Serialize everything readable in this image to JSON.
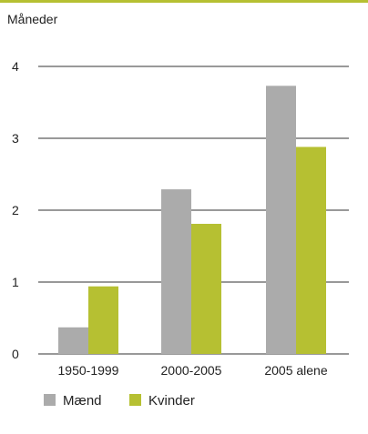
{
  "chart_data": {
    "type": "bar",
    "ylabel": "Måneder",
    "categories": [
      "1950-1999",
      "2000-2005",
      "2005 alene"
    ],
    "series": [
      {
        "name": "Mænd",
        "values": [
          0.37,
          2.29,
          3.73
        ],
        "color": "#ababab"
      },
      {
        "name": "Kvinder",
        "values": [
          0.94,
          1.81,
          2.88
        ],
        "color": "#b6c032"
      }
    ],
    "ylim": [
      0,
      4
    ],
    "yticks": [
      0,
      1,
      2,
      3,
      4
    ],
    "grid": true,
    "legend_position": "bottom-left"
  },
  "colors": {
    "accent_rule": "#b6c032",
    "gridline": "#333333"
  }
}
